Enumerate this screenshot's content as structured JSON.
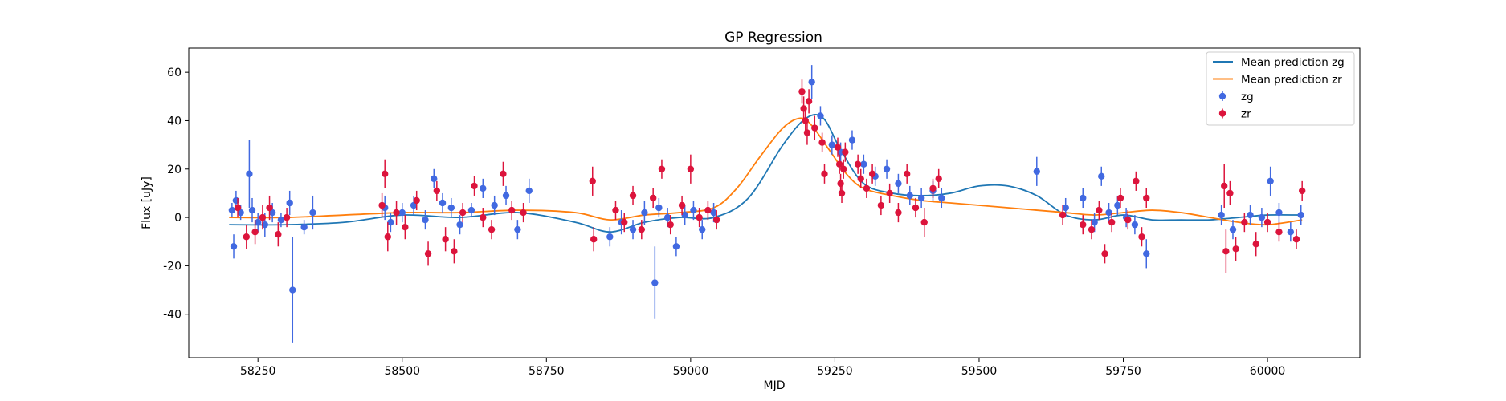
{
  "chart_data": {
    "type": "scatter",
    "title": "GP Regression",
    "xlabel": "MJD",
    "ylabel": "Flux [uJy]",
    "xlim": [
      58130,
      60160
    ],
    "ylim": [
      -58,
      70
    ],
    "x_ticks": [
      58250,
      58500,
      58750,
      59000,
      59250,
      59500,
      59750,
      60000
    ],
    "y_ticks": [
      -40,
      -20,
      0,
      20,
      40,
      60
    ],
    "grid": false,
    "legend_position": "top-right",
    "legend": [
      {
        "label": "Mean prediction zg",
        "kind": "line",
        "color": "#1f77b4"
      },
      {
        "label": "Mean prediction zr",
        "kind": "line",
        "color": "#ff7f0e"
      },
      {
        "label": "zg",
        "kind": "errorbar",
        "color": "#4169e1"
      },
      {
        "label": "zr",
        "kind": "errorbar",
        "color": "#dc143c"
      }
    ],
    "lines": [
      {
        "name": "Mean prediction zg",
        "color": "#1f77b4",
        "x": [
          58200,
          58300,
          58400,
          58500,
          58600,
          58700,
          58800,
          58860,
          58920,
          58980,
          59040,
          59100,
          59160,
          59200,
          59230,
          59260,
          59300,
          59350,
          59400,
          59450,
          59500,
          59550,
          59600,
          59650,
          59700,
          59750,
          59800,
          59850,
          59900,
          59950,
          60000,
          60060
        ],
        "y": [
          -3,
          -3,
          -2,
          1,
          0,
          2,
          -2,
          -6,
          -2,
          0,
          0,
          8,
          30,
          41,
          41,
          28,
          14,
          10,
          9,
          10,
          13,
          13,
          9,
          1,
          -1,
          1,
          -1,
          -1,
          -1,
          0,
          1,
          1
        ]
      },
      {
        "name": "Mean prediction zr",
        "color": "#ff7f0e",
        "x": [
          58200,
          58300,
          58400,
          58500,
          58600,
          58700,
          58800,
          58860,
          58920,
          58980,
          59040,
          59080,
          59120,
          59160,
          59190,
          59210,
          59240,
          59270,
          59300,
          59350,
          59400,
          59450,
          59500,
          59550,
          59600,
          59650,
          59700,
          59750,
          59800,
          59850,
          59900,
          59950,
          60000,
          60060
        ],
        "y": [
          0,
          0,
          1,
          2,
          2,
          3,
          2,
          -1,
          1,
          2,
          4,
          12,
          25,
          37,
          41,
          38,
          28,
          18,
          12,
          9,
          7,
          6,
          5,
          4,
          3,
          2,
          1,
          2,
          3,
          2,
          0,
          -2,
          -3,
          -1
        ]
      }
    ],
    "series": [
      {
        "name": "zg",
        "color": "#4169e1",
        "points": [
          {
            "x": 58205,
            "y": 3,
            "err": 3
          },
          {
            "x": 58208,
            "y": -12,
            "err": 5
          },
          {
            "x": 58212,
            "y": 7,
            "err": 4
          },
          {
            "x": 58220,
            "y": 2,
            "err": 3
          },
          {
            "x": 58235,
            "y": 18,
            "err": 14
          },
          {
            "x": 58240,
            "y": 3,
            "err": 5
          },
          {
            "x": 58250,
            "y": -2,
            "err": 4
          },
          {
            "x": 58262,
            "y": -3,
            "err": 5
          },
          {
            "x": 58275,
            "y": 2,
            "err": 4
          },
          {
            "x": 58290,
            "y": -1,
            "err": 3
          },
          {
            "x": 58310,
            "y": -30,
            "err": 22
          },
          {
            "x": 58305,
            "y": 6,
            "err": 5
          },
          {
            "x": 58330,
            "y": -4,
            "err": 3
          },
          {
            "x": 58345,
            "y": 2,
            "err": 7
          },
          {
            "x": 58470,
            "y": 4,
            "err": 5
          },
          {
            "x": 58480,
            "y": -2,
            "err": 4
          },
          {
            "x": 58500,
            "y": 2,
            "err": 4
          },
          {
            "x": 58520,
            "y": 5,
            "err": 4
          },
          {
            "x": 58540,
            "y": -1,
            "err": 4
          },
          {
            "x": 58555,
            "y": 16,
            "err": 4
          },
          {
            "x": 58570,
            "y": 6,
            "err": 4
          },
          {
            "x": 58585,
            "y": 4,
            "err": 4
          },
          {
            "x": 58600,
            "y": -3,
            "err": 4
          },
          {
            "x": 58620,
            "y": 3,
            "err": 3
          },
          {
            "x": 58640,
            "y": 12,
            "err": 4
          },
          {
            "x": 58660,
            "y": 5,
            "err": 4
          },
          {
            "x": 58680,
            "y": 9,
            "err": 4
          },
          {
            "x": 58700,
            "y": -5,
            "err": 4
          },
          {
            "x": 58720,
            "y": 11,
            "err": 5
          },
          {
            "x": 58860,
            "y": -8,
            "err": 4
          },
          {
            "x": 58880,
            "y": -2,
            "err": 5
          },
          {
            "x": 58900,
            "y": -5,
            "err": 4
          },
          {
            "x": 58920,
            "y": 2,
            "err": 5
          },
          {
            "x": 58938,
            "y": -27,
            "err": 15
          },
          {
            "x": 58945,
            "y": 4,
            "err": 4
          },
          {
            "x": 58960,
            "y": 0,
            "err": 4
          },
          {
            "x": 58975,
            "y": -12,
            "err": 4
          },
          {
            "x": 58990,
            "y": 1,
            "err": 4
          },
          {
            "x": 59005,
            "y": 3,
            "err": 4
          },
          {
            "x": 59020,
            "y": -5,
            "err": 4
          },
          {
            "x": 59040,
            "y": 2,
            "err": 4
          },
          {
            "x": 59210,
            "y": 56,
            "err": 7
          },
          {
            "x": 59225,
            "y": 42,
            "err": 4
          },
          {
            "x": 59245,
            "y": 30,
            "err": 4
          },
          {
            "x": 59260,
            "y": 27,
            "err": 4
          },
          {
            "x": 59280,
            "y": 32,
            "err": 4
          },
          {
            "x": 59300,
            "y": 22,
            "err": 4
          },
          {
            "x": 59320,
            "y": 17,
            "err": 4
          },
          {
            "x": 59340,
            "y": 20,
            "err": 4
          },
          {
            "x": 59360,
            "y": 14,
            "err": 4
          },
          {
            "x": 59380,
            "y": 9,
            "err": 4
          },
          {
            "x": 59400,
            "y": 8,
            "err": 4
          },
          {
            "x": 59420,
            "y": 11,
            "err": 4
          },
          {
            "x": 59435,
            "y": 8,
            "err": 4
          },
          {
            "x": 59600,
            "y": 19,
            "err": 6
          },
          {
            "x": 59650,
            "y": 4,
            "err": 4
          },
          {
            "x": 59680,
            "y": 8,
            "err": 4
          },
          {
            "x": 59700,
            "y": -2,
            "err": 4
          },
          {
            "x": 59712,
            "y": 17,
            "err": 4
          },
          {
            "x": 59725,
            "y": 2,
            "err": 4
          },
          {
            "x": 59740,
            "y": 5,
            "err": 4
          },
          {
            "x": 59755,
            "y": 0,
            "err": 4
          },
          {
            "x": 59770,
            "y": -3,
            "err": 4
          },
          {
            "x": 59790,
            "y": -15,
            "err": 6
          },
          {
            "x": 59920,
            "y": 1,
            "err": 4
          },
          {
            "x": 59940,
            "y": -5,
            "err": 4
          },
          {
            "x": 59970,
            "y": 1,
            "err": 4
          },
          {
            "x": 59990,
            "y": 0,
            "err": 4
          },
          {
            "x": 60005,
            "y": 15,
            "err": 6
          },
          {
            "x": 60020,
            "y": 2,
            "err": 4
          },
          {
            "x": 60040,
            "y": -6,
            "err": 4
          },
          {
            "x": 60058,
            "y": 1,
            "err": 4
          }
        ]
      },
      {
        "name": "zr",
        "color": "#dc143c",
        "points": [
          {
            "x": 58215,
            "y": 4,
            "err": 4
          },
          {
            "x": 58230,
            "y": -8,
            "err": 5
          },
          {
            "x": 58245,
            "y": -6,
            "err": 5
          },
          {
            "x": 58258,
            "y": 0,
            "err": 5
          },
          {
            "x": 58270,
            "y": 4,
            "err": 5
          },
          {
            "x": 58285,
            "y": -7,
            "err": 5
          },
          {
            "x": 58300,
            "y": 0,
            "err": 4
          },
          {
            "x": 58465,
            "y": 5,
            "err": 5
          },
          {
            "x": 58470,
            "y": 18,
            "err": 6
          },
          {
            "x": 58475,
            "y": -8,
            "err": 6
          },
          {
            "x": 58490,
            "y": 2,
            "err": 5
          },
          {
            "x": 58505,
            "y": -4,
            "err": 5
          },
          {
            "x": 58525,
            "y": 7,
            "err": 4
          },
          {
            "x": 58545,
            "y": -15,
            "err": 5
          },
          {
            "x": 58560,
            "y": 11,
            "err": 4
          },
          {
            "x": 58575,
            "y": -9,
            "err": 5
          },
          {
            "x": 58590,
            "y": -14,
            "err": 5
          },
          {
            "x": 58605,
            "y": 2,
            "err": 4
          },
          {
            "x": 58625,
            "y": 13,
            "err": 4
          },
          {
            "x": 58640,
            "y": 0,
            "err": 4
          },
          {
            "x": 58655,
            "y": -5,
            "err": 4
          },
          {
            "x": 58675,
            "y": 18,
            "err": 5
          },
          {
            "x": 58690,
            "y": 3,
            "err": 4
          },
          {
            "x": 58710,
            "y": 2,
            "err": 4
          },
          {
            "x": 58830,
            "y": 15,
            "err": 6
          },
          {
            "x": 58832,
            "y": -9,
            "err": 5
          },
          {
            "x": 58870,
            "y": 3,
            "err": 4
          },
          {
            "x": 58885,
            "y": -2,
            "err": 4
          },
          {
            "x": 58900,
            "y": 9,
            "err": 4
          },
          {
            "x": 58915,
            "y": -5,
            "err": 4
          },
          {
            "x": 58935,
            "y": 8,
            "err": 4
          },
          {
            "x": 58950,
            "y": 20,
            "err": 4
          },
          {
            "x": 58965,
            "y": -3,
            "err": 4
          },
          {
            "x": 58985,
            "y": 5,
            "err": 4
          },
          {
            "x": 59000,
            "y": 20,
            "err": 6
          },
          {
            "x": 59015,
            "y": 0,
            "err": 4
          },
          {
            "x": 59030,
            "y": 3,
            "err": 4
          },
          {
            "x": 59045,
            "y": -1,
            "err": 4
          },
          {
            "x": 59193,
            "y": 52,
            "err": 5
          },
          {
            "x": 59196,
            "y": 45,
            "err": 5
          },
          {
            "x": 59199,
            "y": 40,
            "err": 5
          },
          {
            "x": 59202,
            "y": 35,
            "err": 5
          },
          {
            "x": 59205,
            "y": 48,
            "err": 5
          },
          {
            "x": 59215,
            "y": 37,
            "err": 5
          },
          {
            "x": 59228,
            "y": 31,
            "err": 4
          },
          {
            "x": 59232,
            "y": 18,
            "err": 4
          },
          {
            "x": 59255,
            "y": 29,
            "err": 4
          },
          {
            "x": 59258,
            "y": 22,
            "err": 4
          },
          {
            "x": 59260,
            "y": 14,
            "err": 4
          },
          {
            "x": 59262,
            "y": 10,
            "err": 4
          },
          {
            "x": 59265,
            "y": 20,
            "err": 4
          },
          {
            "x": 59268,
            "y": 27,
            "err": 4
          },
          {
            "x": 59290,
            "y": 22,
            "err": 4
          },
          {
            "x": 59295,
            "y": 16,
            "err": 4
          },
          {
            "x": 59305,
            "y": 12,
            "err": 4
          },
          {
            "x": 59315,
            "y": 18,
            "err": 4
          },
          {
            "x": 59330,
            "y": 5,
            "err": 4
          },
          {
            "x": 59345,
            "y": 10,
            "err": 4
          },
          {
            "x": 59360,
            "y": 2,
            "err": 4
          },
          {
            "x": 59375,
            "y": 18,
            "err": 4
          },
          {
            "x": 59390,
            "y": 4,
            "err": 4
          },
          {
            "x": 59405,
            "y": -2,
            "err": 6
          },
          {
            "x": 59420,
            "y": 12,
            "err": 4
          },
          {
            "x": 59430,
            "y": 16,
            "err": 4
          },
          {
            "x": 59645,
            "y": 1,
            "err": 4
          },
          {
            "x": 59680,
            "y": -3,
            "err": 4
          },
          {
            "x": 59695,
            "y": -5,
            "err": 4
          },
          {
            "x": 59708,
            "y": 3,
            "err": 4
          },
          {
            "x": 59718,
            "y": -15,
            "err": 4
          },
          {
            "x": 59730,
            "y": -2,
            "err": 4
          },
          {
            "x": 59745,
            "y": 8,
            "err": 4
          },
          {
            "x": 59758,
            "y": -1,
            "err": 4
          },
          {
            "x": 59772,
            "y": 15,
            "err": 4
          },
          {
            "x": 59782,
            "y": -8,
            "err": 4
          },
          {
            "x": 59790,
            "y": 8,
            "err": 4
          },
          {
            "x": 59925,
            "y": 13,
            "err": 9
          },
          {
            "x": 59928,
            "y": -14,
            "err": 9
          },
          {
            "x": 59935,
            "y": 10,
            "err": 5
          },
          {
            "x": 59945,
            "y": -13,
            "err": 5
          },
          {
            "x": 59960,
            "y": -2,
            "err": 4
          },
          {
            "x": 59980,
            "y": -11,
            "err": 5
          },
          {
            "x": 60000,
            "y": -2,
            "err": 4
          },
          {
            "x": 60020,
            "y": -6,
            "err": 4
          },
          {
            "x": 60050,
            "y": -9,
            "err": 4
          },
          {
            "x": 60060,
            "y": 11,
            "err": 4
          }
        ]
      }
    ]
  }
}
